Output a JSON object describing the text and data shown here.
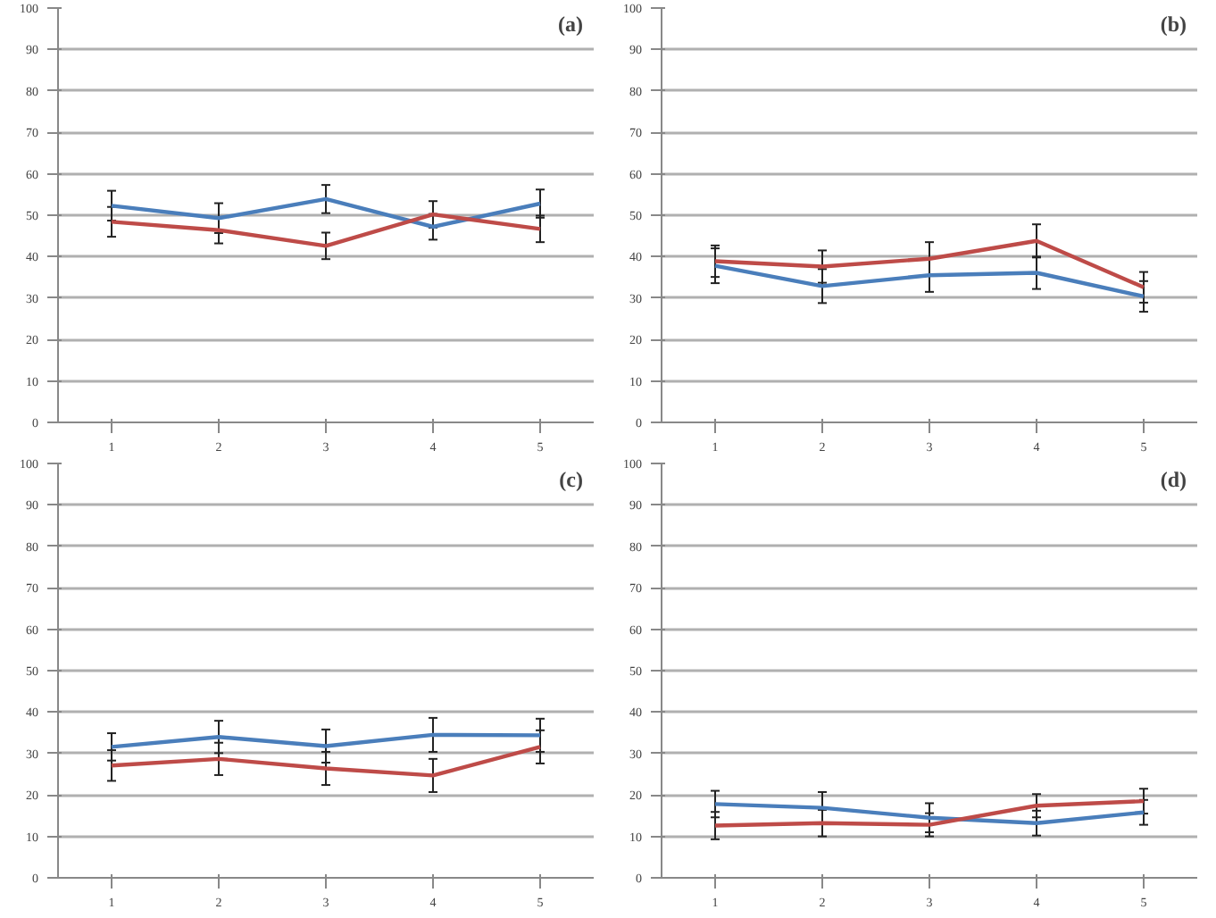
{
  "chart_data": [
    {
      "type": "line",
      "categories": [
        "1",
        "2",
        "3",
        "4",
        "5"
      ],
      "ylim": [
        0,
        100
      ],
      "yticks": [
        0,
        10,
        20,
        30,
        40,
        50,
        60,
        70,
        80,
        90,
        100
      ],
      "grid": "y",
      "annotations": [
        "(a)"
      ],
      "series": [
        {
          "color": "#4a7ebb",
          "values": [
            52.3,
            49.3,
            53.9,
            47.2,
            52.8
          ],
          "errors": [
            3.6,
            3.6,
            3.4,
            3.1,
            3.4
          ]
        },
        {
          "color": "#be4b48",
          "values": [
            48.4,
            46.4,
            42.6,
            50.2,
            46.7
          ],
          "errors": [
            3.6,
            3.2,
            3.2,
            3.2,
            3.2
          ]
        }
      ]
    },
    {
      "type": "line",
      "categories": [
        "1",
        "2",
        "3",
        "4",
        "5"
      ],
      "ylim": [
        0,
        100
      ],
      "yticks": [
        0,
        10,
        20,
        30,
        40,
        50,
        60,
        70,
        80,
        90,
        100
      ],
      "grid": "y",
      "annotations": [
        "(b)"
      ],
      "series": [
        {
          "color": "#4a7ebb",
          "values": [
            37.8,
            32.9,
            35.5,
            36.1,
            30.4
          ],
          "errors": [
            4.2,
            4.1,
            4.0,
            3.9,
            3.7
          ]
        },
        {
          "color": "#be4b48",
          "values": [
            38.9,
            37.6,
            39.5,
            43.8,
            32.6
          ],
          "errors": [
            3.8,
            3.9,
            4.0,
            4.0,
            3.7
          ]
        }
      ]
    },
    {
      "type": "line",
      "categories": [
        "1",
        "2",
        "3",
        "4",
        "5"
      ],
      "ylim": [
        0,
        100
      ],
      "yticks": [
        0,
        10,
        20,
        30,
        40,
        50,
        60,
        70,
        80,
        90,
        100
      ],
      "grid": "y",
      "annotations": [
        "(c)"
      ],
      "series": [
        {
          "color": "#4a7ebb",
          "values": [
            31.6,
            34.0,
            31.8,
            34.5,
            34.4
          ],
          "errors": [
            3.3,
            3.9,
            4.0,
            4.1,
            4.0
          ]
        },
        {
          "color": "#be4b48",
          "values": [
            27.1,
            28.7,
            26.4,
            24.7,
            31.6
          ],
          "errors": [
            3.7,
            3.9,
            4.0,
            4.0,
            4.0
          ]
        }
      ]
    },
    {
      "type": "line",
      "categories": [
        "1",
        "2",
        "3",
        "4",
        "5"
      ],
      "ylim": [
        0,
        100
      ],
      "yticks": [
        0,
        10,
        20,
        30,
        40,
        50,
        60,
        70,
        80,
        90,
        100
      ],
      "grid": "y",
      "annotations": [
        "(d)"
      ],
      "series": [
        {
          "color": "#4a7ebb",
          "values": [
            17.8,
            16.9,
            14.5,
            13.2,
            15.8
          ],
          "errors": [
            3.2,
            3.8,
            3.5,
            3.0,
            3.0
          ]
        },
        {
          "color": "#be4b48",
          "values": [
            12.6,
            13.2,
            12.8,
            17.4,
            18.5
          ],
          "errors": [
            3.3,
            3.2,
            2.8,
            2.8,
            3.0
          ]
        }
      ]
    }
  ]
}
